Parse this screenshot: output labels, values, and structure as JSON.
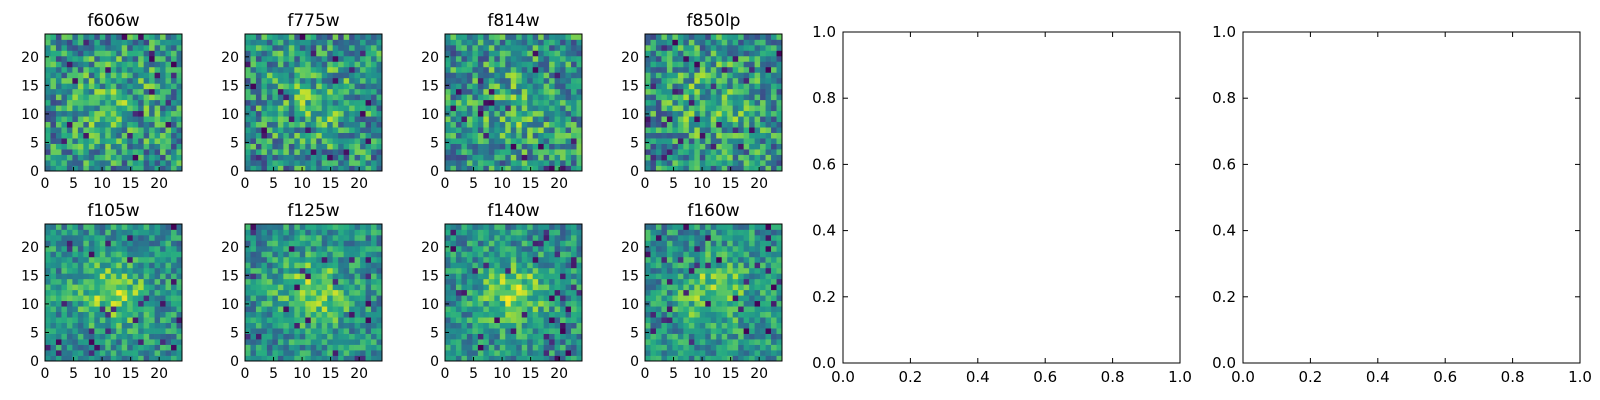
{
  "chart_data": [
    {
      "type": "heatmap",
      "title": "f606w",
      "xticks": [
        0,
        5,
        10,
        15,
        20
      ],
      "yticks": [
        0,
        5,
        10,
        15,
        20
      ],
      "grid_size": 25,
      "colormap": "viridis",
      "extent": [
        0,
        24
      ]
    },
    {
      "type": "heatmap",
      "title": "f775w",
      "xticks": [
        0,
        5,
        10,
        15,
        20
      ],
      "yticks": [
        0,
        5,
        10,
        15,
        20
      ],
      "grid_size": 25,
      "colormap": "viridis",
      "extent": [
        0,
        24
      ]
    },
    {
      "type": "heatmap",
      "title": "f814w",
      "xticks": [
        0,
        5,
        10,
        15,
        20
      ],
      "yticks": [
        0,
        5,
        10,
        15,
        20
      ],
      "grid_size": 25,
      "colormap": "viridis",
      "extent": [
        0,
        24
      ]
    },
    {
      "type": "heatmap",
      "title": "f850lp",
      "xticks": [
        0,
        5,
        10,
        15,
        20
      ],
      "yticks": [
        0,
        5,
        10,
        15,
        20
      ],
      "grid_size": 25,
      "colormap": "viridis",
      "extent": [
        0,
        24
      ]
    },
    {
      "type": "heatmap",
      "title": "f105w",
      "xticks": [
        0,
        5,
        10,
        15,
        20
      ],
      "yticks": [
        0,
        5,
        10,
        15,
        20
      ],
      "grid_size": 25,
      "colormap": "viridis",
      "extent": [
        0,
        24
      ]
    },
    {
      "type": "heatmap",
      "title": "f125w",
      "xticks": [
        0,
        5,
        10,
        15,
        20
      ],
      "yticks": [
        0,
        5,
        10,
        15,
        20
      ],
      "grid_size": 25,
      "colormap": "viridis",
      "extent": [
        0,
        24
      ]
    },
    {
      "type": "heatmap",
      "title": "f140w",
      "xticks": [
        0,
        5,
        10,
        15,
        20
      ],
      "yticks": [
        0,
        5,
        10,
        15,
        20
      ],
      "grid_size": 25,
      "colormap": "viridis",
      "extent": [
        0,
        24
      ]
    },
    {
      "type": "heatmap",
      "title": "f160w",
      "xticks": [
        0,
        5,
        10,
        15,
        20
      ],
      "yticks": [
        0,
        5,
        10,
        15,
        20
      ],
      "grid_size": 25,
      "colormap": "viridis",
      "extent": [
        0,
        24
      ]
    },
    {
      "type": "scatter",
      "title": "",
      "xlim": [
        0,
        1
      ],
      "ylim": [
        0,
        1
      ],
      "xticks": [
        "0.0",
        "0.2",
        "0.4",
        "0.6",
        "0.8",
        "1.0"
      ],
      "yticks": [
        "0.0",
        "0.2",
        "0.4",
        "0.6",
        "0.8",
        "1.0"
      ],
      "values": []
    },
    {
      "type": "scatter",
      "title": "",
      "xlim": [
        0,
        1
      ],
      "ylim": [
        0,
        1
      ],
      "xticks": [
        "0.0",
        "0.2",
        "0.4",
        "0.6",
        "0.8",
        "1.0"
      ],
      "yticks": [
        "0.0",
        "0.2",
        "0.4",
        "0.6",
        "0.8",
        "1.0"
      ],
      "values": []
    }
  ]
}
